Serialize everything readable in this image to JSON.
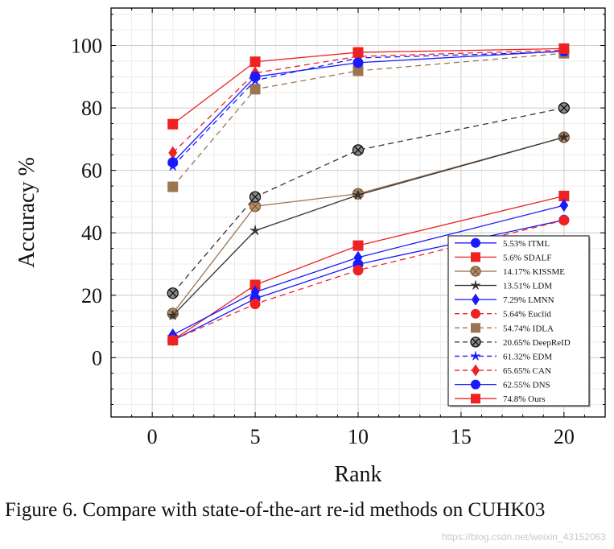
{
  "chart_data": {
    "type": "line",
    "title": "",
    "xlabel": "Rank",
    "ylabel": "Accuracy %",
    "xlim": [
      -2,
      22
    ],
    "ylim": [
      -19,
      112
    ],
    "xticks": [
      0,
      5,
      10,
      15,
      20
    ],
    "yticks": [
      0,
      20,
      40,
      60,
      80,
      100
    ],
    "grid": true,
    "legend_position": "bottom-right",
    "x": [
      1,
      5,
      10,
      20
    ],
    "series": [
      {
        "name": "5.53% ITML",
        "values": [
          5.53,
          18.9,
          29.9,
          44.1
        ],
        "color": "#1a1aff",
        "dash": false,
        "marker": "circle"
      },
      {
        "name": "5.6% SDALF",
        "values": [
          5.6,
          23.3,
          35.9,
          51.8
        ],
        "color": "#ee2222",
        "dash": false,
        "marker": "square"
      },
      {
        "name": "14.17% KISSME",
        "values": [
          14.17,
          48.5,
          52.5,
          70.6
        ],
        "color": "#9b7552",
        "dash": false,
        "marker": "circle-hatched"
      },
      {
        "name": "13.51% LDM",
        "values": [
          13.51,
          40.7,
          52.1,
          70.6
        ],
        "color": "#333333",
        "dash": false,
        "marker": "star"
      },
      {
        "name": "7.29% LMNN",
        "values": [
          7.29,
          21.0,
          32.1,
          48.8
        ],
        "color": "#1a1aff",
        "dash": false,
        "marker": "diamond"
      },
      {
        "name": "5.64% Euclid",
        "values": [
          5.64,
          17.2,
          28.0,
          44.0
        ],
        "color": "#ee2222",
        "dash": true,
        "marker": "circle"
      },
      {
        "name": "54.74% IDLA",
        "values": [
          54.74,
          86.0,
          91.9,
          97.5
        ],
        "color": "#9b7552",
        "dash": true,
        "marker": "square"
      },
      {
        "name": "20.65% DeepReID",
        "values": [
          20.65,
          51.5,
          66.5,
          80.0
        ],
        "color": "#333333",
        "dash": true,
        "marker": "circle-x"
      },
      {
        "name": "61.32% EDM",
        "values": [
          61.32,
          88.8,
          96.0,
          98.0
        ],
        "color": "#1a1aff",
        "dash": true,
        "marker": "star"
      },
      {
        "name": "65.65% CAN",
        "values": [
          65.65,
          91.2,
          96.5,
          98.5
        ],
        "color": "#ee2222",
        "dash": true,
        "marker": "diamond"
      },
      {
        "name": "62.55% DNS",
        "values": [
          62.55,
          90.0,
          94.5,
          98.2
        ],
        "color": "#1a1aff",
        "dash": false,
        "marker": "circle"
      },
      {
        "name": "74.8% Ours",
        "values": [
          74.8,
          94.8,
          97.8,
          99.0
        ],
        "color": "#ee2222",
        "dash": false,
        "marker": "square"
      }
    ]
  },
  "caption": "Figure 6. Compare with state-of-the-art re-id methods on CUHK03",
  "watermark": "https://blog.csdn.net/weixin_43152063"
}
